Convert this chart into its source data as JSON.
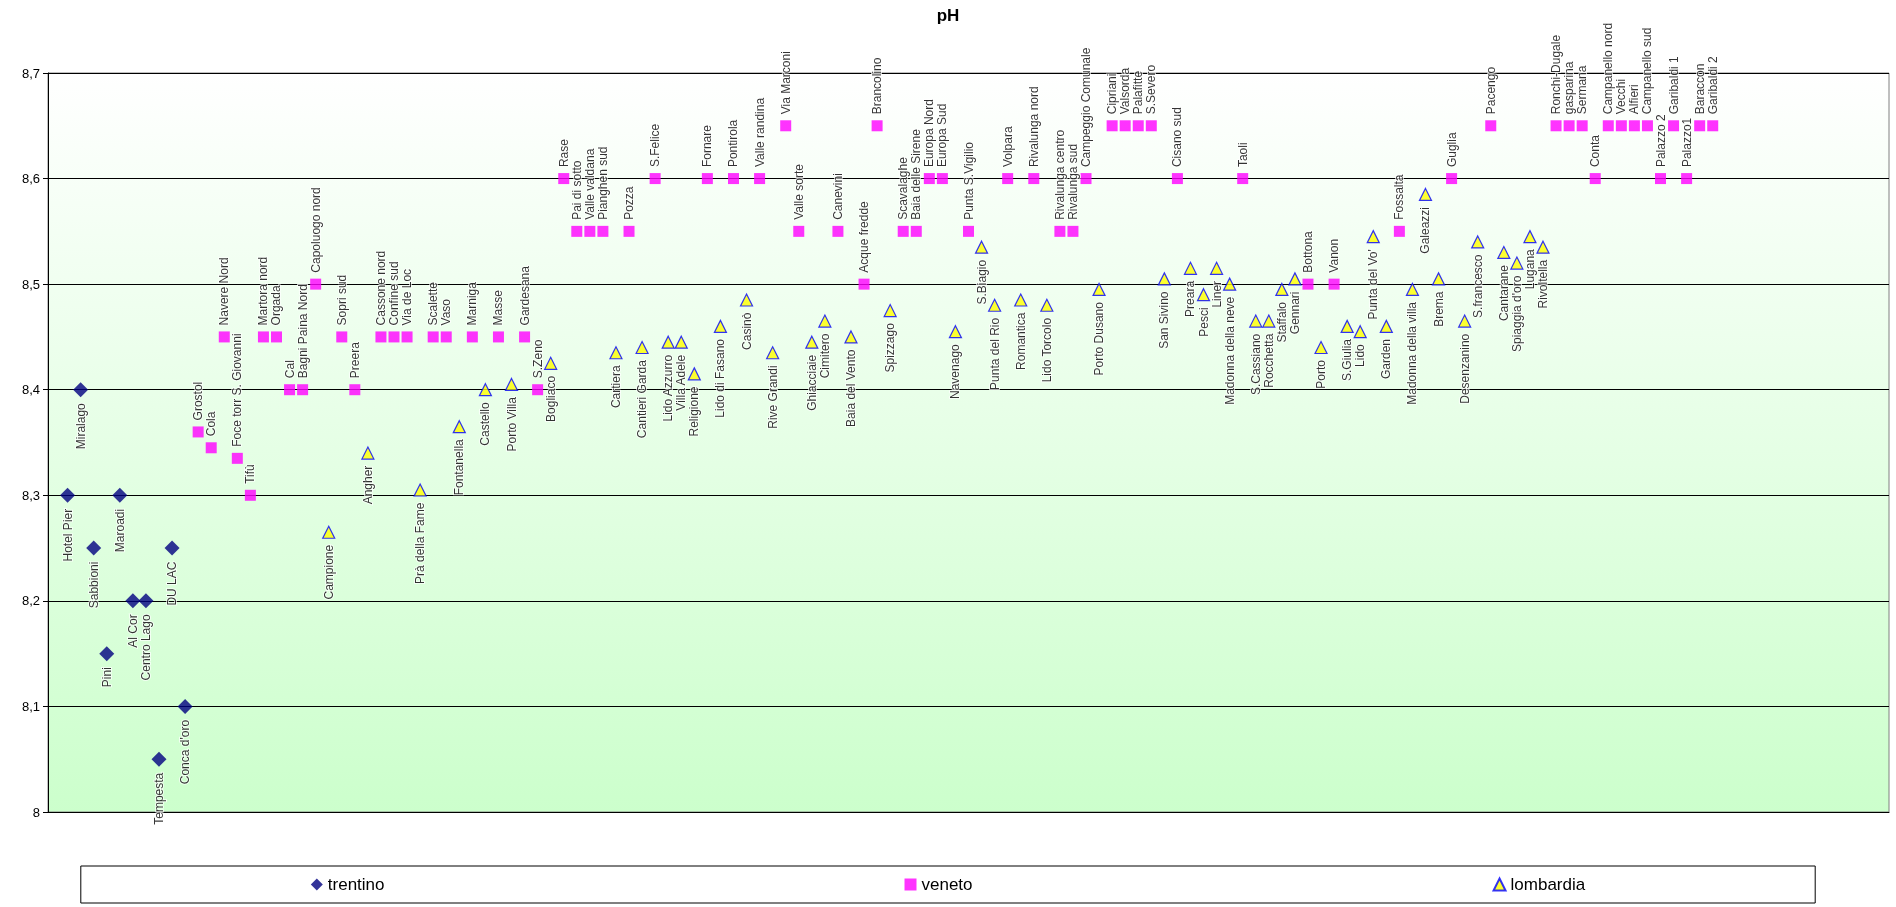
{
  "chart_data": {
    "type": "scatter",
    "title": "pH",
    "categories": [
      null,
      null,
      null,
      null,
      null,
      null,
      null,
      null,
      null,
      null,
      null,
      null,
      null,
      null,
      null,
      null,
      null,
      null,
      null,
      null,
      null,
      null,
      null,
      null,
      null,
      null,
      null,
      null,
      null,
      null,
      null,
      null,
      null,
      null,
      null,
      null,
      null,
      null,
      null,
      null,
      null,
      null,
      null,
      null,
      null,
      null,
      null,
      null,
      null,
      null,
      null,
      null,
      null,
      null,
      null,
      null,
      null,
      null,
      null,
      null,
      null,
      null,
      null,
      null,
      null,
      null,
      null,
      null,
      null,
      null,
      null,
      null,
      null,
      null,
      null,
      null,
      null,
      null,
      null,
      null,
      null,
      null,
      null,
      null,
      null,
      null,
      null,
      null,
      null,
      null,
      null,
      null,
      null,
      null,
      null,
      null,
      null,
      null,
      null,
      null,
      null,
      null,
      null,
      null,
      null,
      null,
      null,
      null,
      null,
      null,
      null,
      null,
      null,
      null,
      null,
      null,
      null,
      null,
      null,
      null,
      null,
      null,
      null,
      null,
      null,
      null,
      null,
      null,
      null,
      null,
      null,
      null,
      null,
      null,
      null,
      null,
      null,
      null,
      null,
      null,
      null
    ],
    "ylim": [
      8,
      8.7
    ],
    "yticks": [
      8,
      {
        "value": 8.1,
        "label": "8,1"
      },
      {
        "value": 8.2,
        "label": "8,2"
      },
      {
        "value": 8.3,
        "label": "8,3"
      },
      {
        "value": 8.4,
        "label": "8,4"
      },
      {
        "value": 8.5,
        "label": "8,5"
      },
      {
        "value": 8.6,
        "label": "8,6"
      },
      {
        "value": 8.7,
        "label": "8,7"
      }
    ],
    "grid": "y",
    "legend": "bottom",
    "series": [
      {
        "name": "trentino",
        "color": "#000080",
        "marker": "diamond",
        "values": [
          null,
          8.3,
          8.4,
          8.25,
          8.15,
          8.3,
          8.2,
          8.2,
          8.05,
          8.25,
          8.1,
          null,
          null,
          null,
          null,
          null,
          null,
          null,
          null,
          null,
          null,
          null,
          null,
          null,
          null,
          null,
          null,
          null,
          null,
          null,
          null,
          null,
          null,
          null,
          null,
          null,
          null,
          null,
          null,
          null,
          null,
          null,
          null,
          null,
          null,
          null,
          null,
          null,
          null,
          null,
          null,
          null,
          null,
          null,
          null,
          null,
          null,
          null,
          null,
          null,
          null,
          null,
          null,
          null,
          null,
          null,
          null,
          null,
          null,
          null,
          null,
          null,
          null,
          null,
          null,
          null,
          null,
          null,
          null,
          null,
          null,
          null,
          null,
          null,
          null,
          null,
          null,
          null,
          null,
          null,
          null,
          null,
          null,
          null,
          null,
          null,
          null,
          null,
          null,
          null,
          null,
          null,
          null,
          null,
          null,
          null,
          null,
          null,
          null,
          null,
          null,
          null,
          null,
          null,
          null,
          null,
          null,
          null,
          null,
          null,
          null,
          null,
          null,
          null,
          null,
          null,
          null,
          null,
          null,
          null,
          null,
          null,
          null,
          null,
          null,
          null,
          null,
          null,
          null,
          null,
          null
        ],
        "value_labels": [
          null,
          "Hotel Pier",
          "Miralago",
          "Sabbioni",
          "Pini",
          "Maroadi",
          "Al Cor",
          "Centro Lago",
          "Tempesta",
          "DU LAC",
          "Conca d'oro",
          null,
          null,
          null,
          null,
          null,
          null,
          null,
          null,
          null,
          null,
          null,
          null,
          null,
          null,
          null,
          null,
          null,
          null,
          null,
          null,
          null,
          null,
          null,
          null,
          null,
          null,
          null,
          null,
          null,
          null,
          null,
          null,
          null,
          null,
          null,
          null,
          null,
          null,
          null,
          null,
          null,
          null,
          null,
          null,
          null,
          null,
          null,
          null,
          null,
          null,
          null,
          null,
          null,
          null,
          null,
          null,
          null,
          null,
          null,
          null,
          null,
          null,
          null,
          null,
          null,
          null,
          null,
          null,
          null,
          null,
          null,
          null,
          null,
          null,
          null,
          null,
          null,
          null,
          null,
          null,
          null,
          null,
          null,
          null,
          null,
          null,
          null,
          null,
          null,
          null,
          null,
          null,
          null,
          null,
          null,
          null,
          null,
          null,
          null,
          null,
          null,
          null,
          null,
          null,
          null,
          null,
          null,
          null,
          null,
          null,
          null,
          null,
          null,
          null,
          null,
          null,
          null,
          null,
          null,
          null,
          null,
          null,
          null,
          null,
          null,
          null,
          null,
          null,
          null,
          null
        ]
      },
      {
        "name": "veneto",
        "color": "#ff00ff",
        "marker": "square",
        "values": [
          null,
          null,
          null,
          null,
          null,
          null,
          null,
          null,
          null,
          null,
          null,
          8.36,
          8.345,
          8.45,
          8.335,
          8.3,
          8.45,
          8.45,
          8.4,
          8.4,
          8.5,
          null,
          8.45,
          8.4,
          null,
          8.45,
          8.45,
          8.45,
          null,
          8.45,
          8.45,
          null,
          8.45,
          null,
          8.45,
          null,
          8.45,
          8.4,
          null,
          8.6,
          8.55,
          8.55,
          8.55,
          null,
          8.55,
          null,
          8.6,
          null,
          null,
          null,
          8.6,
          null,
          8.6,
          null,
          8.6,
          null,
          8.65,
          8.55,
          null,
          null,
          8.55,
          null,
          8.5,
          8.65,
          null,
          8.55,
          8.55,
          8.6,
          8.6,
          null,
          8.55,
          null,
          null,
          8.6,
          null,
          8.6,
          null,
          8.55,
          8.55,
          8.6,
          null,
          8.65,
          8.65,
          8.65,
          8.65,
          null,
          8.6,
          null,
          null,
          null,
          null,
          8.6,
          null,
          null,
          null,
          null,
          8.5,
          null,
          8.5,
          null,
          null,
          null,
          null,
          8.55,
          null,
          null,
          null,
          8.6,
          null,
          null,
          8.65,
          null,
          null,
          null,
          null,
          8.65,
          8.65,
          8.65,
          8.6,
          8.65,
          8.65,
          8.65,
          8.65,
          8.6,
          8.65,
          8.6,
          8.65,
          8.65,
          null,
          null,
          null,
          null,
          null,
          null,
          null,
          null,
          null,
          null,
          null,
          null,
          null
        ],
        "value_labels": [
          null,
          null,
          null,
          null,
          null,
          null,
          null,
          null,
          null,
          null,
          null,
          "Grostol",
          "Cola",
          "Navere Nord",
          "Foce torr S. Giovanni",
          "Tifù",
          "Martora nord",
          "Orgada",
          "Cal",
          "Bagni Paina Nord",
          "Capoluogo nord",
          null,
          "Sopri sud",
          "Preera",
          null,
          "Cassone nord",
          "Confine sud",
          "Via de Loc",
          null,
          "Scalette",
          "Vaso",
          null,
          "Marniga",
          null,
          "Masse",
          null,
          "Gardesana",
          "S.Zeno",
          null,
          "Rase",
          "Pai di sotto",
          "Valle valdana",
          "Pianghen sud",
          null,
          "Pozza",
          null,
          "S.Felice",
          null,
          null,
          null,
          "Fornare",
          null,
          "Pontirola",
          null,
          "Valle randina",
          null,
          "Via Marconi",
          "Valle sorte",
          null,
          null,
          "Canevini",
          null,
          "Acque fredde",
          "Brancolino",
          null,
          "Scavalaghe",
          "Baia delle Sirene",
          "Europa Nord",
          "Europa Sud",
          null,
          "Punta S.Vigilio",
          null,
          null,
          "Volpara",
          null,
          "Rivalunga nord",
          null,
          "Rivalunga centro",
          "Rivalunga sud",
          "Campeggio Comunale",
          null,
          "Cipriani",
          "Valsorda",
          "Palafitte",
          "S.Severo",
          null,
          "Cisano sud",
          null,
          null,
          null,
          null,
          "Taoli",
          null,
          null,
          null,
          null,
          "Bottona",
          null,
          "Vanon",
          null,
          null,
          null,
          null,
          "Fossalta",
          null,
          null,
          null,
          "Guglia",
          null,
          null,
          "Pacengo",
          null,
          null,
          null,
          null,
          "Ronchi-Dugale",
          "gasparina",
          "Sermana",
          "Conta",
          "Campanello nord",
          "Vecchi",
          "Alfieri",
          "Campanello sud",
          "Palazzo 2",
          "Garibaldi 1",
          "Palazzo1",
          "Baraccon",
          "Garibaldi 2",
          null,
          null,
          null,
          null,
          null,
          null,
          null,
          null,
          null,
          null,
          null,
          null,
          null
        ]
      },
      {
        "name": "lombardia",
        "color": "#ffff00",
        "marker": "triangle",
        "values": [
          null,
          null,
          null,
          null,
          null,
          null,
          null,
          null,
          null,
          null,
          null,
          null,
          null,
          null,
          null,
          null,
          null,
          null,
          null,
          null,
          null,
          8.265,
          null,
          null,
          8.34,
          null,
          null,
          null,
          8.305,
          null,
          null,
          8.365,
          null,
          8.4,
          null,
          8.405,
          null,
          null,
          8.425,
          null,
          null,
          null,
          null,
          8.435,
          null,
          8.44,
          null,
          8.445,
          8.445,
          8.415,
          null,
          8.46,
          null,
          8.485,
          null,
          8.435,
          null,
          null,
          8.445,
          8.465,
          null,
          8.45,
          null,
          null,
          8.475,
          null,
          null,
          null,
          null,
          8.455,
          null,
          8.535,
          8.48,
          null,
          8.485,
          null,
          8.48,
          null,
          null,
          null,
          8.495,
          null,
          null,
          null,
          null,
          8.505,
          null,
          8.515,
          8.49,
          8.515,
          8.5,
          null,
          8.465,
          8.465,
          8.495,
          8.505,
          null,
          8.44,
          null,
          8.46,
          8.455,
          8.545,
          8.46,
          null,
          8.495,
          8.585,
          8.505,
          null,
          8.465,
          8.54,
          null,
          8.53,
          8.52,
          8.545,
          8.535,
          null,
          null,
          null,
          null,
          null,
          null,
          null,
          null,
          null,
          null,
          null,
          null,
          null,
          null,
          null,
          null,
          null,
          null,
          null,
          null,
          null,
          null,
          null,
          null,
          null,
          null
        ],
        "value_labels": [
          null,
          null,
          null,
          null,
          null,
          null,
          null,
          null,
          null,
          null,
          null,
          null,
          null,
          null,
          null,
          null,
          null,
          null,
          null,
          null,
          null,
          "Campione",
          null,
          null,
          "Angher",
          null,
          null,
          null,
          "Prà della Fame",
          null,
          null,
          "Fontanella",
          null,
          "Castello",
          null,
          "Porto Villa",
          null,
          null,
          "Bogliaco",
          null,
          null,
          null,
          null,
          "Cartiera",
          null,
          "Cantieri Garda",
          null,
          "Lido Azzurro",
          "Villa Adele",
          "Religione",
          null,
          "Lido di Fasano",
          null,
          "Casinò",
          null,
          "Rive Grandi",
          null,
          null,
          "Ghiacciaie",
          "Cimitero",
          null,
          "Baia del Vento",
          null,
          null,
          "Spizzago",
          null,
          null,
          null,
          null,
          "Navenago",
          null,
          "S.Biagio",
          "Punta del Rio",
          null,
          "Romantica",
          null,
          "Lido Torcolo",
          null,
          null,
          null,
          "Porto Dusano",
          null,
          null,
          null,
          null,
          "San Sivino",
          null,
          "Preara",
          "Pesci",
          "Liner",
          "Madonna della neve",
          null,
          "S.Cassiano",
          "Rocchetta",
          "Staffalo",
          "Gennari",
          null,
          "Porto",
          null,
          "S.Giulia",
          "Lido",
          "Punta del Vo'",
          "Garden",
          null,
          "Madonna della villa",
          "Galeazzi",
          "Brema",
          null,
          "Desenzanino",
          "S.francesco",
          null,
          "Cantarane",
          "Spiaggia d'oro",
          "Lugana",
          "Rivoltella",
          null,
          null,
          null,
          null,
          null,
          null,
          null,
          null,
          null,
          null,
          null,
          null,
          null,
          null,
          null,
          null,
          null,
          null,
          null,
          null,
          null,
          null,
          null,
          null,
          null,
          null
        ]
      }
    ]
  }
}
